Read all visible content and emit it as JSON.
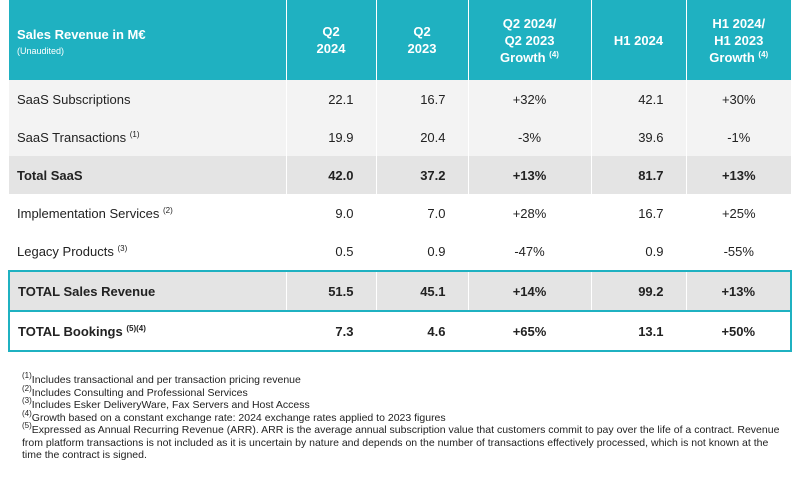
{
  "header": {
    "title": "Sales Revenue in M€",
    "subtitle": "(Unaudited)",
    "columns": [
      {
        "lines": [
          "Q2",
          "2024"
        ]
      },
      {
        "lines": [
          "Q2",
          "2023"
        ]
      },
      {
        "lines": [
          "Q2 2024/",
          "Q2 2023",
          "Growth"
        ],
        "note": "(4)"
      },
      {
        "lines": [
          "H1 2024"
        ]
      },
      {
        "lines": [
          "H1 2024/",
          "H1 2023",
          "Growth"
        ],
        "note": "(4)"
      }
    ]
  },
  "rows": [
    {
      "label": "SaaS Subscriptions",
      "cells": [
        "22.1",
        "16.7",
        "+32%",
        "42.1",
        "+30%"
      ]
    },
    {
      "label": "SaaS Transactions",
      "note": "(1)",
      "cells": [
        "19.9",
        "20.4",
        "-3%",
        "39.6",
        "-1%"
      ]
    },
    {
      "label": "Total SaaS",
      "cells": [
        "42.0",
        "37.2",
        "+13%",
        "81.7",
        "+13%"
      ]
    },
    {
      "label": "Implementation Services",
      "note": "(2)",
      "cells": [
        "9.0",
        "7.0",
        "+28%",
        "16.7",
        "+25%"
      ]
    },
    {
      "label": "Legacy Products",
      "note": "(3)",
      "cells": [
        "0.5",
        "0.9",
        "-47%",
        "0.9",
        "-55%"
      ]
    },
    {
      "label": "TOTAL Sales Revenue",
      "cells": [
        "51.5",
        "45.1",
        "+14%",
        "99.2",
        "+13%"
      ]
    },
    {
      "label": "TOTAL Bookings",
      "note": "(5)(4)",
      "cells": [
        "7.3",
        "4.6",
        "+65%",
        "13.1",
        "+50%"
      ]
    }
  ],
  "footnotes": [
    {
      "mark": "(1)",
      "text": "Includes  transactional and per transaction pricing revenue"
    },
    {
      "mark": "(2)",
      "text": "Includes Consulting and Professional Services"
    },
    {
      "mark": "(3)",
      "text": "Includes Esker DeliveryWare, Fax Servers and Host Access"
    },
    {
      "mark": "(4)",
      "text": "Growth based on a constant exchange rate: 2024 exchange rates applied to 2023 figures"
    },
    {
      "mark": "(5)",
      "text": "Expressed as Annual Recurring Revenue (ARR). ARR is the average annual subscription value that customers commit to pay over the life of a contract. Revenue from platform transactions is not included as it is uncertain by nature and depends on the number of transactions effectively processed, which is not known at the time the contract is signed."
    }
  ]
}
